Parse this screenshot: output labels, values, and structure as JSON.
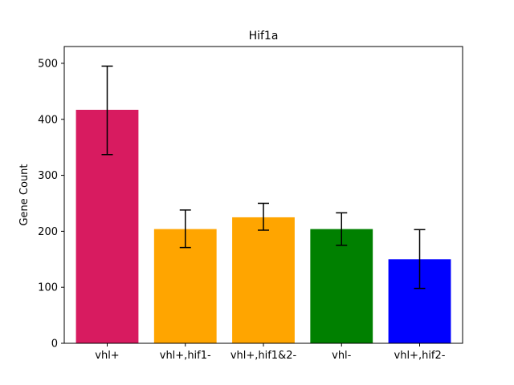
{
  "chart_data": {
    "type": "bar",
    "title": "Hif1a",
    "xlabel": "",
    "ylabel": "Gene Count",
    "categories": [
      "vhl+",
      "vhl+,hif1-",
      "vhl+,hif1&2-",
      "vhl-",
      "vhl+,hif2-"
    ],
    "values": [
      417,
      204,
      225,
      204,
      150
    ],
    "error_low": [
      337,
      171,
      202,
      175,
      98
    ],
    "error_high": [
      495,
      238,
      250,
      233,
      203
    ],
    "colors": [
      "#d81b60",
      "#ffa500",
      "#ffa500",
      "#008000",
      "#0000ff"
    ],
    "ylim": [
      0,
      530
    ],
    "yticks": [
      0,
      100,
      200,
      300,
      400,
      500
    ],
    "grid": false,
    "legend": "none"
  }
}
